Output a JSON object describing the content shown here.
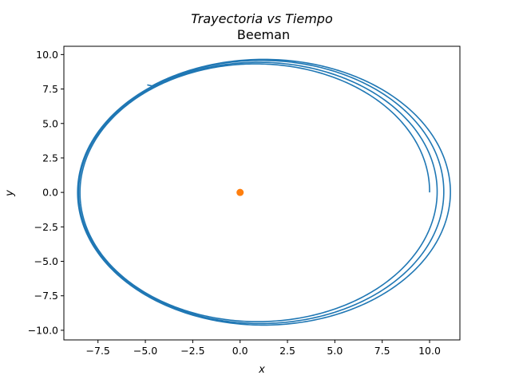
{
  "chart_data": {
    "type": "line",
    "title": "Trayectoria vs Tiempo",
    "subtitle": "Beeman",
    "xlabel": "x",
    "ylabel": "y",
    "xlim": [
      -9.3,
      11.6
    ],
    "ylim": [
      -10.7,
      10.6
    ],
    "grid": false,
    "x_ticks": [
      -7.5,
      -5.0,
      -2.5,
      0.0,
      2.5,
      5.0,
      7.5,
      10.0
    ],
    "x_tick_labels": [
      "−7.5",
      "−5.0",
      "−2.5",
      "0.0",
      "2.5",
      "5.0",
      "7.5",
      "10.0"
    ],
    "y_ticks": [
      10.0,
      7.5,
      5.0,
      2.5,
      0.0,
      -2.5,
      -5.0,
      -7.5,
      -10.0
    ],
    "y_tick_labels": [
      "10.0",
      "7.5",
      "5.0",
      "2.5",
      "0.0",
      "−2.5",
      "−5.0",
      "−7.5",
      "−10.0"
    ],
    "series": [
      {
        "kind": "orbit",
        "color": "#1f77b4",
        "start": [
          10.0,
          0.0
        ],
        "end": [
          -4.9,
          7.8
        ],
        "orbits": [
          {
            "center_x": 0.8,
            "semi_x": 9.2,
            "semi_y": 9.3
          },
          {
            "center_x": 0.95,
            "semi_x": 9.45,
            "semi_y": 9.4
          },
          {
            "center_x": 1.1,
            "semi_x": 9.65,
            "semi_y": 9.55
          },
          {
            "center_x": 1.25,
            "semi_x": 9.85,
            "semi_y": 9.65
          }
        ]
      },
      {
        "kind": "point",
        "color": "#ff7f0e",
        "x": 0.0,
        "y": 0.0
      }
    ]
  }
}
